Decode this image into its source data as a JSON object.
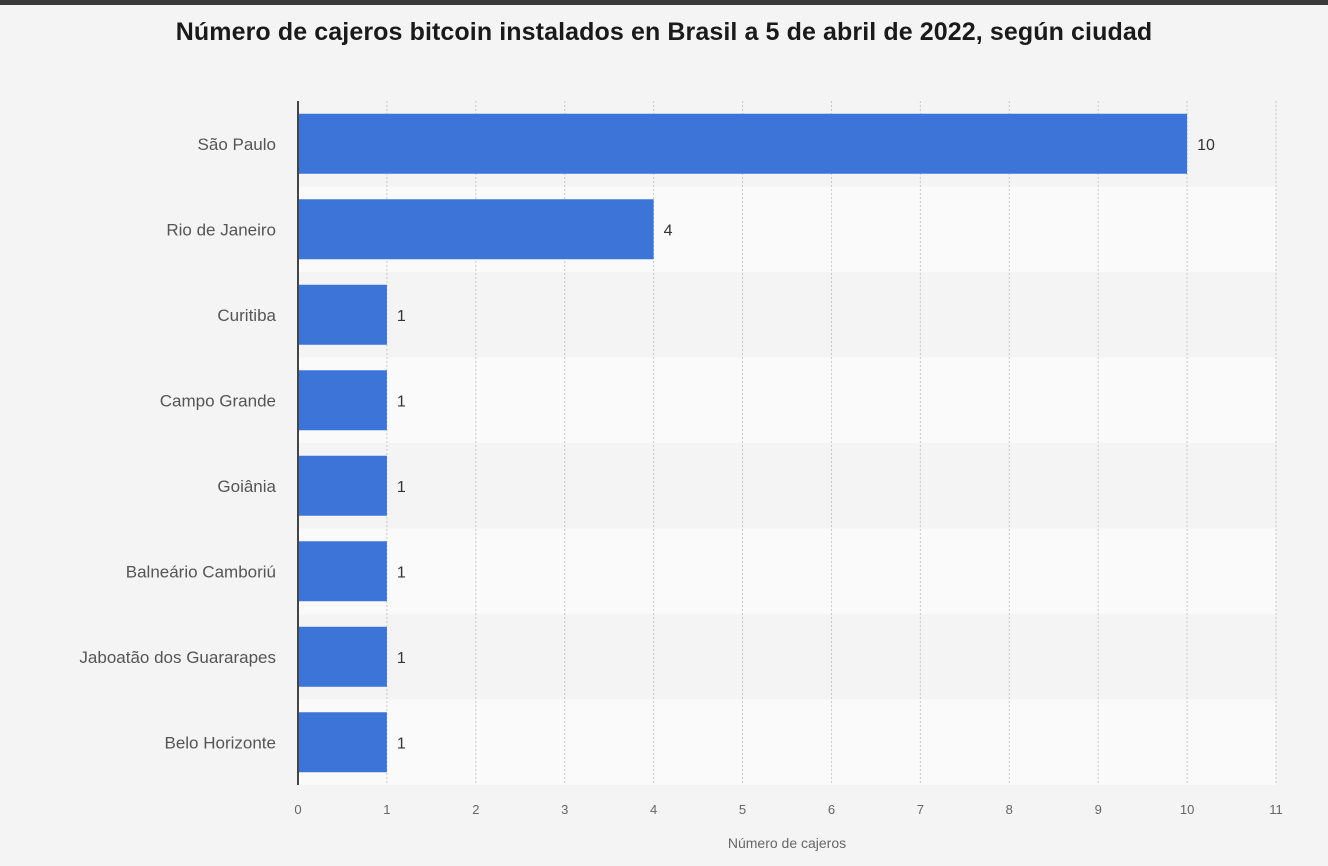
{
  "chart_data": {
    "type": "bar",
    "orientation": "horizontal",
    "title": "Número de cajeros bitcoin instalados en Brasil a 5 de abril de 2022, según ciudad",
    "categories": [
      "São Paulo",
      "Rio de Janeiro",
      "Curitiba",
      "Campo Grande",
      "Goiânia",
      "Balneário Camboriú",
      "Jaboatão dos Guararapes",
      "Belo Horizonte"
    ],
    "values": [
      10,
      4,
      1,
      1,
      1,
      1,
      1,
      1
    ],
    "xlabel": "Número de cajeros",
    "ylabel": "",
    "xlim": [
      0,
      11
    ],
    "xticks": [
      0,
      1,
      2,
      3,
      4,
      5,
      6,
      7,
      8,
      9,
      10,
      11
    ],
    "grid": true,
    "bar_color": "#3c74d8"
  }
}
